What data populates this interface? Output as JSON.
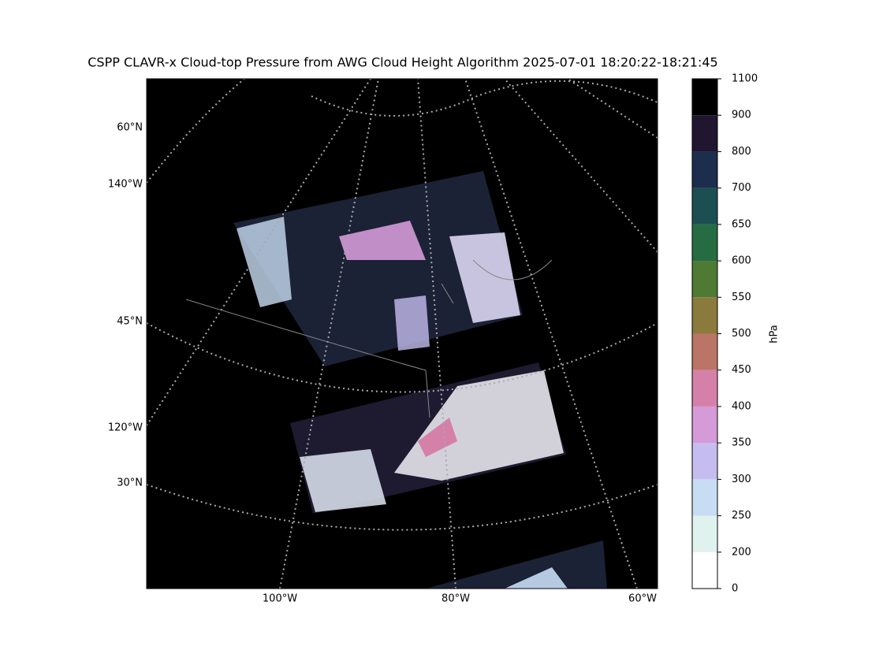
{
  "title": "CSPP CLAVR-x Cloud-top Pressure from AWG Cloud Height Algorithm 2025-07-01 18:20:22-18:21:45",
  "map": {
    "lat_labels": [
      "60°N",
      "45°N",
      "30°N"
    ],
    "lon_labels_left": [
      "140°W",
      "120°W"
    ],
    "lon_labels_bottom": [
      "100°W",
      "80°W",
      "60°W"
    ]
  },
  "colorbar": {
    "label": "hPa",
    "boundaries": [
      0,
      200,
      250,
      300,
      350,
      400,
      450,
      500,
      550,
      600,
      650,
      700,
      800,
      900,
      1100
    ],
    "colors": [
      "#ffffff",
      "#dff2ee",
      "#c7ddf3",
      "#c5bdef",
      "#d59ad8",
      "#d580a8",
      "#bb7566",
      "#8a7b3c",
      "#4e7a34",
      "#266c42",
      "#1b4f51",
      "#1d2d4e",
      "#21162f",
      "#000000"
    ]
  }
}
